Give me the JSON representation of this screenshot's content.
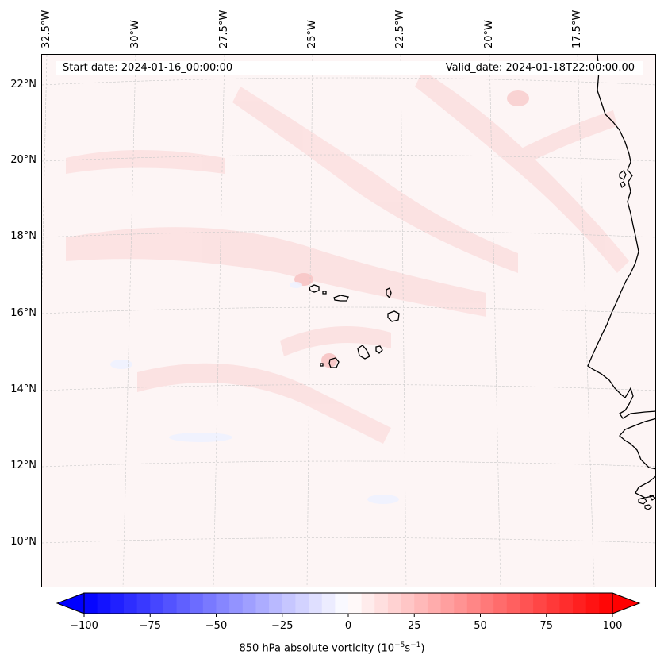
{
  "map": {
    "start_date_text": "Start date: 2024-01-16_00:00:00",
    "valid_date_text": "Valid_date: 2024-01-18T22:00:00.00",
    "longitude_labels": [
      "32.5°W",
      "30°W",
      "27.5°W",
      "25°W",
      "22.5°W",
      "20°W",
      "17.5°W"
    ],
    "latitude_labels": [
      "22°N",
      "20°N",
      "18°N",
      "16°N",
      "14°N",
      "12°N",
      "10°N"
    ],
    "field": "850 hPa absolute vorticity",
    "units": "10^-5 s^-1",
    "colormap": "bwr",
    "gridlines": true,
    "background_tint": "#fdf5f5",
    "coast_color": "#000000"
  },
  "colorbar": {
    "title_prefix": "850 hPa absolute vorticity (10",
    "title_exp1": "−5",
    "title_mid": "s",
    "title_exp2": "−1",
    "title_suffix": ")",
    "tick_labels": [
      "−100",
      "−75",
      "−50",
      "−25",
      "0",
      "25",
      "50",
      "75",
      "100"
    ],
    "min": -100,
    "max": 100,
    "levels": 40,
    "extend": "both",
    "low_color": "#0000ff",
    "mid_color": "#ffffff",
    "high_color": "#ff0000"
  }
}
